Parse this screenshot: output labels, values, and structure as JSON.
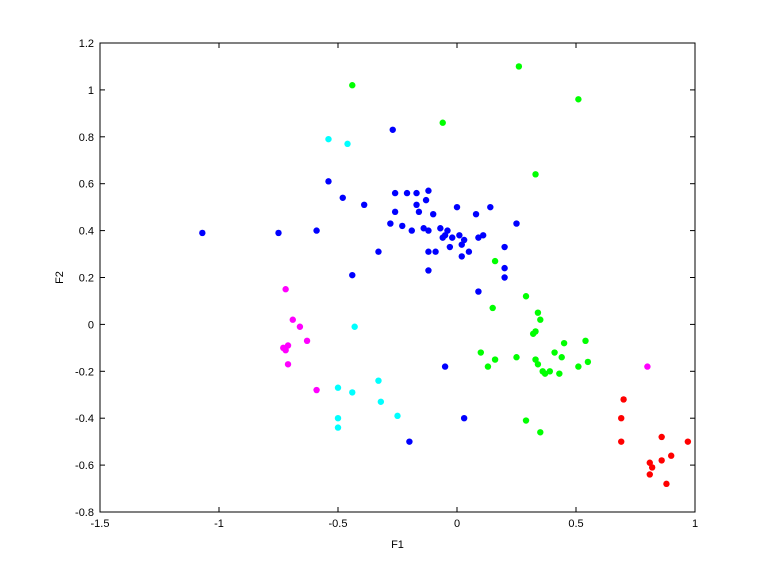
{
  "chart_data": {
    "type": "scatter",
    "title": "",
    "xlabel": "F1",
    "ylabel": "F2",
    "xlim": [
      -1.5,
      1
    ],
    "ylim": [
      -0.8,
      1.2
    ],
    "xticks": [
      -1.5,
      -1,
      -0.5,
      0,
      0.5,
      1
    ],
    "xtick_labels": [
      "-1.5",
      "-1",
      "-0.5",
      "0",
      "0.5",
      "1"
    ],
    "yticks": [
      -0.8,
      -0.6,
      -0.4,
      -0.2,
      0,
      0.2,
      0.4,
      0.6,
      0.8,
      1,
      1.2
    ],
    "ytick_labels": [
      "-0.8",
      "-0.6",
      "-0.4",
      "-0.2",
      "0",
      "0.2",
      "0.4",
      "0.6",
      "0.8",
      "1",
      "1.2"
    ],
    "grid": false,
    "legend": false,
    "series": [
      {
        "color": "#0000ff",
        "points": [
          [
            -1.07,
            0.39
          ],
          [
            -0.75,
            0.39
          ],
          [
            -0.59,
            0.4
          ],
          [
            -0.54,
            0.61
          ],
          [
            -0.48,
            0.54
          ],
          [
            -0.39,
            0.51
          ],
          [
            -0.44,
            0.21
          ],
          [
            -0.33,
            0.31
          ],
          [
            -0.27,
            0.83
          ],
          [
            -0.28,
            0.43
          ],
          [
            -0.26,
            0.56
          ],
          [
            -0.26,
            0.48
          ],
          [
            -0.23,
            0.42
          ],
          [
            -0.21,
            0.56
          ],
          [
            -0.19,
            0.4
          ],
          [
            -0.17,
            0.56
          ],
          [
            -0.17,
            0.51
          ],
          [
            -0.16,
            0.48
          ],
          [
            -0.14,
            0.41
          ],
          [
            -0.13,
            0.53
          ],
          [
            -0.12,
            0.57
          ],
          [
            -0.12,
            0.4
          ],
          [
            -0.12,
            0.31
          ],
          [
            -0.12,
            0.23
          ],
          [
            -0.1,
            0.47
          ],
          [
            -0.09,
            0.31
          ],
          [
            -0.07,
            0.41
          ],
          [
            -0.06,
            0.37
          ],
          [
            -0.05,
            0.38
          ],
          [
            -0.04,
            0.4
          ],
          [
            -0.03,
            0.33
          ],
          [
            -0.02,
            0.37
          ],
          [
            0.0,
            0.5
          ],
          [
            0.01,
            0.38
          ],
          [
            0.02,
            0.34
          ],
          [
            0.03,
            0.36
          ],
          [
            0.02,
            0.29
          ],
          [
            0.05,
            0.31
          ],
          [
            0.08,
            0.47
          ],
          [
            0.09,
            0.37
          ],
          [
            0.11,
            0.38
          ],
          [
            0.14,
            0.5
          ],
          [
            0.09,
            0.14
          ],
          [
            0.2,
            0.24
          ],
          [
            0.2,
            0.2
          ],
          [
            0.2,
            0.33
          ],
          [
            0.25,
            0.43
          ],
          [
            -0.05,
            -0.18
          ],
          [
            0.03,
            -0.4
          ],
          [
            -0.2,
            -0.5
          ]
        ]
      },
      {
        "color": "#00ff00",
        "points": [
          [
            -0.44,
            1.02
          ],
          [
            0.26,
            1.1
          ],
          [
            0.51,
            0.96
          ],
          [
            -0.06,
            0.86
          ],
          [
            0.33,
            0.64
          ],
          [
            0.16,
            0.27
          ],
          [
            0.29,
            0.12
          ],
          [
            0.15,
            0.07
          ],
          [
            0.34,
            0.05
          ],
          [
            0.35,
            0.02
          ],
          [
            0.32,
            -0.04
          ],
          [
            0.33,
            -0.03
          ],
          [
            0.54,
            -0.07
          ],
          [
            0.45,
            -0.08
          ],
          [
            0.1,
            -0.12
          ],
          [
            0.16,
            -0.15
          ],
          [
            0.25,
            -0.14
          ],
          [
            0.33,
            -0.15
          ],
          [
            0.34,
            -0.17
          ],
          [
            0.41,
            -0.12
          ],
          [
            0.44,
            -0.14
          ],
          [
            0.13,
            -0.18
          ],
          [
            0.36,
            -0.2
          ],
          [
            0.37,
            -0.21
          ],
          [
            0.39,
            -0.2
          ],
          [
            0.43,
            -0.21
          ],
          [
            0.51,
            -0.18
          ],
          [
            0.55,
            -0.16
          ],
          [
            0.29,
            -0.41
          ],
          [
            0.35,
            -0.46
          ]
        ]
      },
      {
        "color": "#00ffff",
        "points": [
          [
            -0.54,
            0.79
          ],
          [
            -0.46,
            0.77
          ],
          [
            -0.43,
            -0.01
          ],
          [
            -0.33,
            -0.24
          ],
          [
            -0.5,
            -0.27
          ],
          [
            -0.44,
            -0.29
          ],
          [
            -0.32,
            -0.33
          ],
          [
            -0.25,
            -0.39
          ],
          [
            -0.5,
            -0.4
          ],
          [
            -0.5,
            -0.44
          ]
        ]
      },
      {
        "color": "#ff00ff",
        "points": [
          [
            -0.72,
            0.15
          ],
          [
            -0.69,
            0.02
          ],
          [
            -0.66,
            -0.01
          ],
          [
            -0.63,
            -0.07
          ],
          [
            -0.73,
            -0.1
          ],
          [
            -0.71,
            -0.09
          ],
          [
            -0.72,
            -0.11
          ],
          [
            -0.71,
            -0.17
          ],
          [
            -0.59,
            -0.28
          ],
          [
            0.8,
            -0.18
          ]
        ]
      },
      {
        "color": "#ff0000",
        "points": [
          [
            0.7,
            -0.32
          ],
          [
            0.69,
            -0.4
          ],
          [
            0.69,
            -0.5
          ],
          [
            0.97,
            -0.5
          ],
          [
            0.86,
            -0.48
          ],
          [
            0.9,
            -0.56
          ],
          [
            0.86,
            -0.58
          ],
          [
            0.81,
            -0.59
          ],
          [
            0.82,
            -0.61
          ],
          [
            0.81,
            -0.64
          ],
          [
            0.88,
            -0.68
          ]
        ]
      }
    ]
  }
}
